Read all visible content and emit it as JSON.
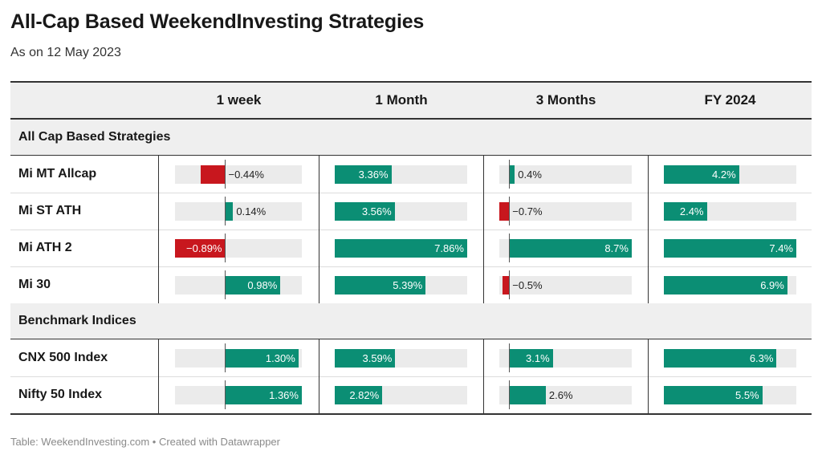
{
  "title": "All-Cap Based WeekendInvesting Strategies",
  "subtitle": "As on 12 May 2023",
  "footer": "Table: WeekendInvesting.com • Created with Datawrapper",
  "colors": {
    "positive": "#0b8e74",
    "negative": "#c8171e",
    "track": "#ebebeb",
    "header_bg": "#efefef"
  },
  "chart_data": {
    "type": "table",
    "columns": [
      "1 week",
      "1 Month",
      "3 Months",
      "FY 2024"
    ],
    "ranges": [
      [
        -0.89,
        1.36
      ],
      [
        0,
        7.86
      ],
      [
        -0.7,
        8.7
      ],
      [
        0,
        7.4
      ]
    ],
    "sections": [
      {
        "name": "All Cap Based Strategies",
        "rows": [
          {
            "name": "Mi MT Allcap",
            "values": [
              -0.44,
              3.36,
              0.4,
              4.2
            ],
            "labels": [
              "−0.44%",
              "3.36%",
              "0.4%",
              "4.2%"
            ]
          },
          {
            "name": "Mi ST ATH",
            "values": [
              0.14,
              3.56,
              -0.7,
              2.4
            ],
            "labels": [
              "0.14%",
              "3.56%",
              "−0.7%",
              "2.4%"
            ]
          },
          {
            "name": "Mi ATH 2",
            "values": [
              -0.89,
              7.86,
              8.7,
              7.4
            ],
            "labels": [
              "−0.89%",
              "7.86%",
              "8.7%",
              "7.4%"
            ]
          },
          {
            "name": "Mi 30",
            "values": [
              0.98,
              5.39,
              -0.5,
              6.9
            ],
            "labels": [
              "0.98%",
              "5.39%",
              "−0.5%",
              "6.9%"
            ]
          }
        ]
      },
      {
        "name": "Benchmark Indices",
        "rows": [
          {
            "name": "CNX 500 Index",
            "values": [
              1.3,
              3.59,
              3.1,
              6.3
            ],
            "labels": [
              "1.30%",
              "3.59%",
              "3.1%",
              "6.3%"
            ]
          },
          {
            "name": "Nifty 50 Index",
            "values": [
              1.36,
              2.82,
              2.6,
              5.5
            ],
            "labels": [
              "1.36%",
              "2.82%",
              "2.6%",
              "5.5%"
            ]
          }
        ]
      }
    ]
  }
}
